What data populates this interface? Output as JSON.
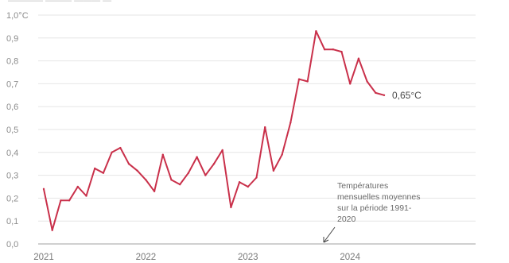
{
  "colors": {
    "series": "#c9304a",
    "grid": "#e6e6e6",
    "axis_text": "#8c8c8c"
  },
  "chart_data": {
    "type": "line",
    "title": "",
    "xlabel": "",
    "ylabel": "",
    "ylim": [
      0,
      1.0
    ],
    "y_ticks": [
      {
        "value": 0.0,
        "label": "0,0"
      },
      {
        "value": 0.1,
        "label": "0,1"
      },
      {
        "value": 0.2,
        "label": "0,2"
      },
      {
        "value": 0.3,
        "label": "0,3"
      },
      {
        "value": 0.4,
        "label": "0,4"
      },
      {
        "value": 0.5,
        "label": "0,5"
      },
      {
        "value": 0.6,
        "label": "0,6"
      },
      {
        "value": 0.7,
        "label": "0,7"
      },
      {
        "value": 0.8,
        "label": "0,8"
      },
      {
        "value": 0.9,
        "label": "0,9"
      },
      {
        "value": 1.0,
        "label": "1,0°C"
      }
    ],
    "x_ticks": [
      "2021",
      "2022",
      "2023",
      "2024"
    ],
    "x": [
      "2021-01",
      "2021-02",
      "2021-03",
      "2021-04",
      "2021-05",
      "2021-06",
      "2021-07",
      "2021-08",
      "2021-09",
      "2021-10",
      "2021-11",
      "2021-12",
      "2022-01",
      "2022-02",
      "2022-03",
      "2022-04",
      "2022-05",
      "2022-06",
      "2022-07",
      "2022-08",
      "2022-09",
      "2022-10",
      "2022-11",
      "2022-12",
      "2023-01",
      "2023-02",
      "2023-03",
      "2023-04",
      "2023-05",
      "2023-06",
      "2023-07",
      "2023-08",
      "2023-09",
      "2023-10",
      "2023-11",
      "2023-12",
      "2024-01",
      "2024-02",
      "2024-03",
      "2024-04",
      "2024-05"
    ],
    "series": [
      {
        "values": [
          0.24,
          0.06,
          0.19,
          0.19,
          0.25,
          0.21,
          0.33,
          0.31,
          0.4,
          0.42,
          0.35,
          0.32,
          0.28,
          0.23,
          0.39,
          0.28,
          0.26,
          0.31,
          0.38,
          0.3,
          0.35,
          0.41,
          0.16,
          0.27,
          0.25,
          0.29,
          0.51,
          0.32,
          0.39,
          0.53,
          0.72,
          0.71,
          0.93,
          0.85,
          0.85,
          0.84,
          0.7,
          0.81,
          0.71,
          0.66,
          0.65
        ],
        "end_label": "0,65°C"
      }
    ],
    "grid": true,
    "annotation": {
      "lines": [
        "Températures",
        "mensuelles moyennes",
        "sur la période 1991-",
        "2020"
      ]
    }
  }
}
